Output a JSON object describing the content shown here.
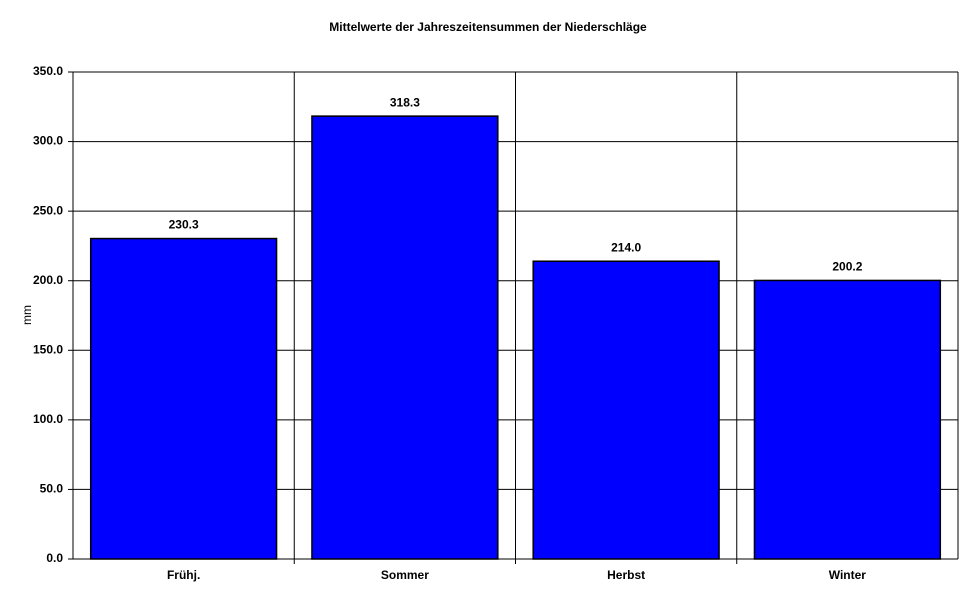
{
  "chart_data": {
    "type": "bar",
    "title": "Mittelwerte der Jahreszeitensummen der Niederschläge",
    "y_label": "mm",
    "categories": [
      "Frühj.",
      "Sommer",
      "Herbst",
      "Winter"
    ],
    "values": [
      230.3,
      318.3,
      214.0,
      200.2
    ],
    "value_labels": [
      "230.3",
      "318.3",
      "214.0",
      "200.2"
    ],
    "color": "#0000ff",
    "ylim": [
      0,
      350
    ],
    "yticks": [
      {
        "value": 0,
        "label": "0.0"
      },
      {
        "value": 50,
        "label": "50.0"
      },
      {
        "value": 100,
        "label": "100.0"
      },
      {
        "value": 150,
        "label": "150.0"
      },
      {
        "value": 200,
        "label": "200.0"
      },
      {
        "value": 250,
        "label": "250.0"
      },
      {
        "value": 300,
        "label": "300.0"
      },
      {
        "value": 350,
        "label": "350.0"
      }
    ],
    "grid": true
  }
}
